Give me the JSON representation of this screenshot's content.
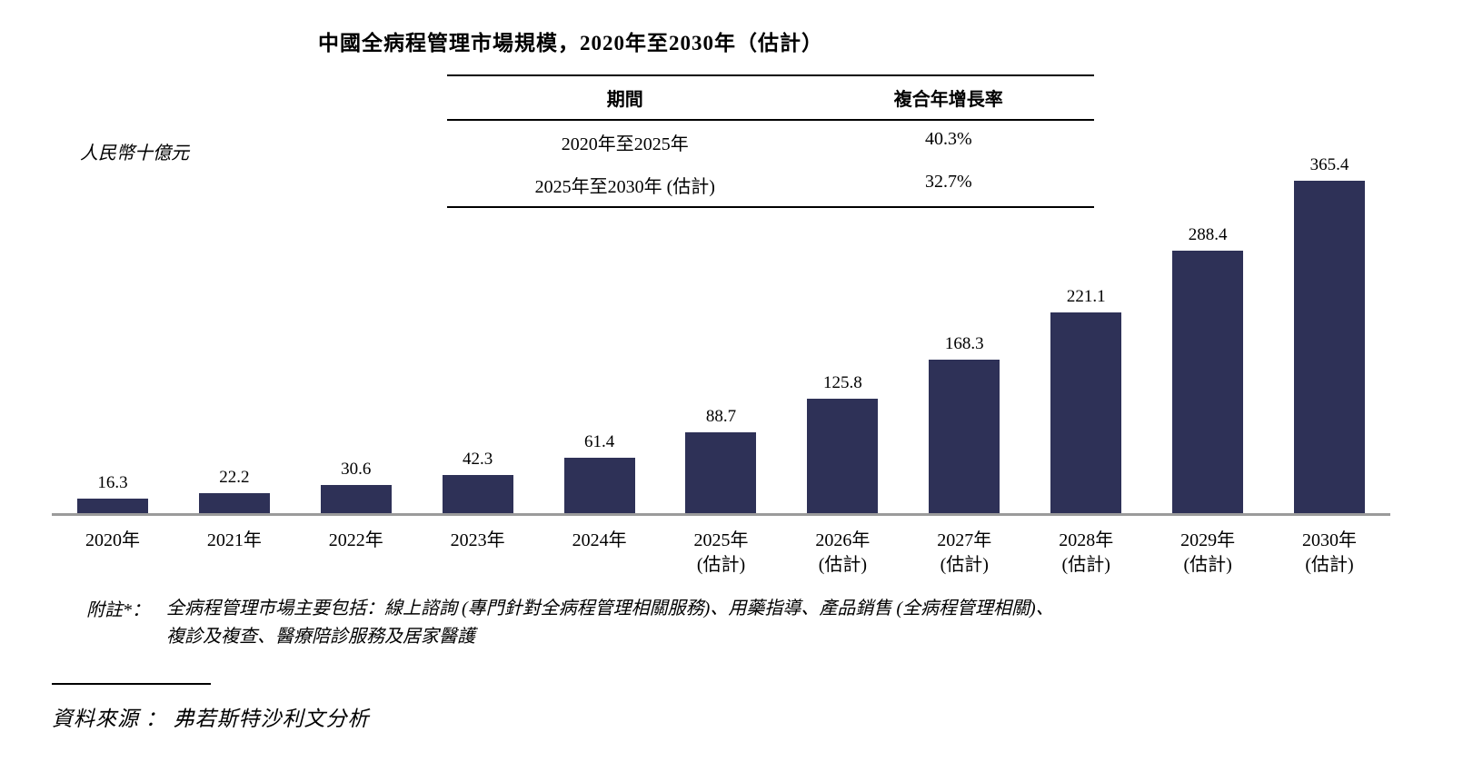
{
  "title": "中國全病程管理市場規模，2020年至2030年（估計）",
  "y_axis_label": "人民幣十億元",
  "cagr_table": {
    "headers": [
      "期間",
      "複合年增長率"
    ],
    "rows": [
      {
        "period": "2020年至2025年",
        "cagr": "40.3%"
      },
      {
        "period": "2025年至2030年 (估計)",
        "cagr": "32.7%"
      }
    ]
  },
  "footnote": {
    "label": "附註*：",
    "line1": "全病程管理市場主要包括：線上諮詢 (專門針對全病程管理相關服務)、用藥指導、產品銷售 (全病程管理相關)、",
    "line2": "複診及複查、醫療陪診服務及居家醫護"
  },
  "source": "資料來源 ： 弗若斯特沙利文分析",
  "chart_data": {
    "type": "bar",
    "title": "中國全病程管理市場規模，2020年至2030年（估計）",
    "ylabel": "人民幣十億元",
    "categories": [
      "2020年",
      "2021年",
      "2022年",
      "2023年",
      "2024年",
      "2025年",
      "2026年",
      "2027年",
      "2028年",
      "2029年",
      "2030年"
    ],
    "category_sublabels": [
      "",
      "",
      "",
      "",
      "",
      "(估計)",
      "(估計)",
      "(估計)",
      "(估計)",
      "(估計)",
      "(估計)"
    ],
    "values": [
      16.3,
      22.2,
      30.6,
      42.3,
      61.4,
      88.7,
      125.8,
      168.3,
      221.1,
      288.4,
      365.4
    ],
    "value_labels": [
      "16.3",
      "22.2",
      "30.6",
      "42.3",
      "61.4",
      "88.7",
      "125.8",
      "168.3",
      "221.1",
      "288.4",
      "365.4"
    ],
    "cagr_2020_2025": "40.3%",
    "cagr_2025_2030": "32.7%",
    "bar_color": "#2e3157",
    "axis_line_color": "#9b9b9b",
    "ylim": [
      0,
      380
    ],
    "grid": false,
    "legend": false
  }
}
